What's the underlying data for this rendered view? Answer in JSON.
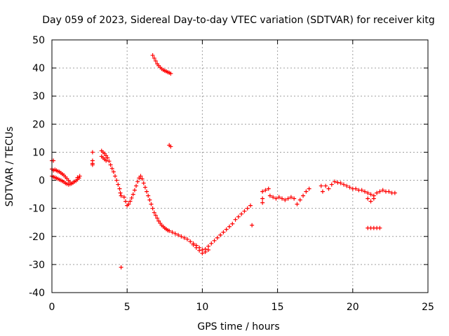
{
  "chart_data": {
    "type": "scatter",
    "title": "Day 059 of 2023, Sidereal Day-to-day VTEC variation (SDTVAR) for receiver kitg",
    "xlabel": "GPS time / hours",
    "ylabel": "SDTVAR / TECUs",
    "xlim": [
      0,
      25
    ],
    "ylim": [
      -40,
      50
    ],
    "xticks": [
      0,
      5,
      10,
      15,
      20,
      25
    ],
    "yticks": [
      -40,
      -30,
      -20,
      -10,
      0,
      10,
      20,
      30,
      40,
      50
    ],
    "xtick_labels": [
      "0",
      "5",
      "10",
      "15",
      "20",
      "25"
    ],
    "ytick_labels": [
      "-40",
      "-30",
      "-20",
      "-10",
      "0",
      "10",
      "20",
      "30",
      "40",
      "50"
    ],
    "grid": true,
    "marker": "+",
    "color": "#ff0000",
    "series": [
      {
        "name": "SDTVAR",
        "points": [
          [
            0.0,
            7.0
          ],
          [
            0.1,
            7.0
          ],
          [
            0.0,
            4.0
          ],
          [
            0.1,
            3.5
          ],
          [
            0.2,
            3.8
          ],
          [
            0.3,
            3.5
          ],
          [
            0.4,
            3.2
          ],
          [
            0.5,
            3.0
          ],
          [
            0.6,
            2.6
          ],
          [
            0.7,
            2.2
          ],
          [
            0.8,
            1.8
          ],
          [
            0.9,
            1.2
          ],
          [
            1.0,
            0.6
          ],
          [
            1.1,
            0.0
          ],
          [
            1.2,
            -0.6
          ],
          [
            0.0,
            1.5
          ],
          [
            0.1,
            1.2
          ],
          [
            0.2,
            1.0
          ],
          [
            0.3,
            0.8
          ],
          [
            0.4,
            0.5
          ],
          [
            0.5,
            0.2
          ],
          [
            0.6,
            0.0
          ],
          [
            0.7,
            -0.3
          ],
          [
            0.8,
            -0.6
          ],
          [
            0.9,
            -1.0
          ],
          [
            1.0,
            -1.3
          ],
          [
            1.1,
            -1.5
          ],
          [
            1.2,
            -1.4
          ],
          [
            1.3,
            -1.2
          ],
          [
            1.4,
            -0.9
          ],
          [
            1.5,
            -0.5
          ],
          [
            1.6,
            -0.2
          ],
          [
            1.7,
            0.3
          ],
          [
            1.8,
            0.8
          ],
          [
            1.85,
            1.5
          ],
          [
            1.7,
            1.0
          ],
          [
            2.7,
            10.0
          ],
          [
            2.7,
            7.0
          ],
          [
            2.7,
            6.0
          ],
          [
            2.7,
            5.5
          ],
          [
            3.3,
            10.5
          ],
          [
            3.4,
            10.0
          ],
          [
            3.5,
            9.5
          ],
          [
            3.6,
            8.8
          ],
          [
            3.7,
            8.0
          ],
          [
            3.8,
            6.8
          ],
          [
            3.9,
            5.5
          ],
          [
            4.0,
            4.2
          ],
          [
            4.1,
            3.0
          ],
          [
            4.2,
            1.5
          ],
          [
            4.3,
            0.0
          ],
          [
            4.4,
            -1.5
          ],
          [
            4.5,
            -3.0
          ],
          [
            4.55,
            -4.5
          ],
          [
            4.6,
            -5.5
          ],
          [
            3.3,
            8.5
          ],
          [
            3.4,
            8.0
          ],
          [
            3.5,
            7.5
          ],
          [
            3.6,
            7.0
          ],
          [
            4.6,
            -31.0
          ],
          [
            4.8,
            -6.0
          ],
          [
            4.9,
            -7.5
          ],
          [
            5.0,
            -9.0
          ],
          [
            5.1,
            -8.5
          ],
          [
            5.2,
            -7.5
          ],
          [
            5.3,
            -6.3
          ],
          [
            5.4,
            -5.0
          ],
          [
            5.5,
            -3.5
          ],
          [
            5.6,
            -2.0
          ],
          [
            5.7,
            -0.5
          ],
          [
            5.8,
            0.8
          ],
          [
            5.9,
            1.5
          ],
          [
            6.0,
            0.5
          ],
          [
            6.1,
            -1.0
          ],
          [
            6.2,
            -2.5
          ],
          [
            6.3,
            -4.0
          ],
          [
            6.4,
            -5.5
          ],
          [
            6.5,
            -7.0
          ],
          [
            6.6,
            -8.5
          ],
          [
            6.7,
            -10.0
          ],
          [
            6.8,
            -11.5
          ],
          [
            6.9,
            -12.5
          ],
          [
            7.0,
            -13.5
          ],
          [
            7.1,
            -14.5
          ],
          [
            7.2,
            -15.3
          ],
          [
            7.3,
            -16.0
          ],
          [
            7.4,
            -16.5
          ],
          [
            7.5,
            -17.0
          ],
          [
            7.6,
            -17.4
          ],
          [
            7.7,
            -17.8
          ],
          [
            7.8,
            -18.0
          ],
          [
            6.7,
            44.5
          ],
          [
            6.8,
            43.5
          ],
          [
            6.9,
            42.5
          ],
          [
            7.0,
            41.5
          ],
          [
            7.1,
            40.8
          ],
          [
            7.2,
            40.2
          ],
          [
            7.3,
            39.7
          ],
          [
            7.4,
            39.3
          ],
          [
            7.5,
            39.0
          ],
          [
            7.6,
            38.8
          ],
          [
            7.7,
            38.5
          ],
          [
            7.8,
            38.3
          ],
          [
            7.9,
            38.0
          ],
          [
            7.8,
            12.5
          ],
          [
            7.9,
            12.0
          ],
          [
            8.0,
            -18.5
          ],
          [
            8.2,
            -19.0
          ],
          [
            8.4,
            -19.5
          ],
          [
            8.6,
            -20.0
          ],
          [
            8.8,
            -20.5
          ],
          [
            9.0,
            -21.0
          ],
          [
            9.2,
            -21.8
          ],
          [
            9.4,
            -22.5
          ],
          [
            9.6,
            -23.2
          ],
          [
            9.8,
            -24.0
          ],
          [
            10.0,
            -24.8
          ],
          [
            10.2,
            -24.5
          ],
          [
            10.4,
            -23.5
          ],
          [
            10.6,
            -22.5
          ],
          [
            10.8,
            -21.5
          ],
          [
            11.0,
            -20.5
          ],
          [
            11.2,
            -19.5
          ],
          [
            11.4,
            -18.5
          ],
          [
            11.6,
            -17.5
          ],
          [
            11.8,
            -16.5
          ],
          [
            12.0,
            -15.5
          ],
          [
            12.2,
            -14.0
          ],
          [
            12.4,
            -13.0
          ],
          [
            12.6,
            -12.0
          ],
          [
            12.8,
            -11.0
          ],
          [
            13.0,
            -10.0
          ],
          [
            9.4,
            -23.0
          ],
          [
            9.6,
            -24.0
          ],
          [
            9.8,
            -25.0
          ],
          [
            10.0,
            -26.0
          ],
          [
            10.2,
            -25.5
          ],
          [
            10.4,
            -24.8
          ],
          [
            13.2,
            -9.0
          ],
          [
            13.3,
            -16.0
          ],
          [
            14.0,
            -4.0
          ],
          [
            14.0,
            -6.5
          ],
          [
            14.0,
            -8.0
          ],
          [
            14.2,
            -3.5
          ],
          [
            14.4,
            -3.0
          ],
          [
            14.5,
            -5.5
          ],
          [
            14.7,
            -6.0
          ],
          [
            14.9,
            -6.5
          ],
          [
            15.1,
            -6.0
          ],
          [
            15.3,
            -6.5
          ],
          [
            15.5,
            -7.0
          ],
          [
            15.7,
            -6.5
          ],
          [
            15.9,
            -6.0
          ],
          [
            16.1,
            -6.5
          ],
          [
            16.3,
            -8.5
          ],
          [
            16.5,
            -7.0
          ],
          [
            16.7,
            -5.5
          ],
          [
            16.9,
            -4.0
          ],
          [
            17.1,
            -3.0
          ],
          [
            17.9,
            -2.0
          ],
          [
            18.0,
            -4.0
          ],
          [
            18.2,
            -2.0
          ],
          [
            18.4,
            -3.0
          ],
          [
            18.6,
            -1.5
          ],
          [
            18.8,
            -0.5
          ],
          [
            19.0,
            -0.8
          ],
          [
            19.2,
            -1.0
          ],
          [
            19.4,
            -1.5
          ],
          [
            19.6,
            -2.0
          ],
          [
            19.8,
            -2.5
          ],
          [
            20.0,
            -3.0
          ],
          [
            20.2,
            -3.0
          ],
          [
            20.4,
            -3.5
          ],
          [
            20.6,
            -3.5
          ],
          [
            20.8,
            -4.0
          ],
          [
            21.0,
            -4.5
          ],
          [
            21.2,
            -5.0
          ],
          [
            21.4,
            -5.5
          ],
          [
            21.6,
            -4.5
          ],
          [
            21.8,
            -4.0
          ],
          [
            22.0,
            -3.5
          ],
          [
            22.2,
            -4.0
          ],
          [
            22.4,
            -4.0
          ],
          [
            22.6,
            -4.5
          ],
          [
            22.8,
            -4.5
          ],
          [
            21.0,
            -6.5
          ],
          [
            21.2,
            -7.5
          ],
          [
            21.4,
            -6.5
          ],
          [
            21.0,
            -17.0
          ],
          [
            21.2,
            -17.0
          ],
          [
            21.4,
            -17.0
          ],
          [
            21.6,
            -17.0
          ],
          [
            21.8,
            -17.0
          ]
        ]
      }
    ]
  }
}
